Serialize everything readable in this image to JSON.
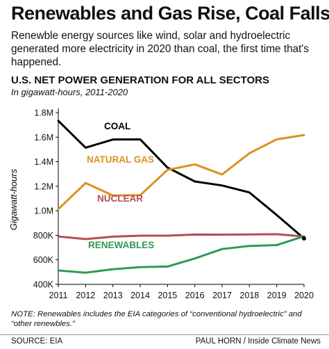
{
  "header": {
    "title": "Renewables and Gas Rise, Coal Falls",
    "subtitle": "Renewble energy sources like wind, solar and hydroelectric generated more electricity in 2020 than coal, the first time that's happened."
  },
  "chart_data": {
    "type": "line",
    "title": "U.S. NET POWER GENERATION FOR ALL SECTORS",
    "subtitle": "In gigawatt-hours, 2011-2020",
    "ylabel": "Gigawatt-hours",
    "xlabel": "",
    "x": [
      2011,
      2012,
      2013,
      2014,
      2015,
      2016,
      2017,
      2018,
      2019,
      2020
    ],
    "ylim": [
      400000,
      1800000
    ],
    "y_ticks": [
      400000,
      600000,
      800000,
      1000000,
      1200000,
      1400000,
      1600000,
      1800000
    ],
    "y_tick_labels": [
      "400K",
      "600K",
      "800K",
      "1.0M",
      "1.2M",
      "1.4M",
      "1.6M",
      "1.8M"
    ],
    "grid": false,
    "legend": "inline labels",
    "series": [
      {
        "name": "COAL",
        "color": "#000000",
        "values": [
          1733000,
          1514000,
          1581000,
          1582000,
          1352000,
          1239000,
          1206000,
          1149000,
          965000,
          774000
        ]
      },
      {
        "name": "NATURAL GAS",
        "color": "#d9921f",
        "values": [
          1013000,
          1226000,
          1124000,
          1127000,
          1333000,
          1378000,
          1296000,
          1469000,
          1582000,
          1617000
        ]
      },
      {
        "name": "NUCLEAR",
        "color": "#b84a54",
        "values": [
          790000,
          769000,
          789000,
          797000,
          797000,
          806000,
          805000,
          807000,
          809000,
          790000
        ]
      },
      {
        "name": "RENEWABLES",
        "color": "#2e9a52",
        "values": [
          513000,
          495000,
          523000,
          540000,
          545000,
          611000,
          688000,
          713000,
          720000,
          792000
        ]
      }
    ]
  },
  "note": "NOTE: Renewables includes the EIA categories of “conventional hydroelectric” and “other renewbles.”",
  "footer": {
    "source": "SOURCE: EIA",
    "credit": "PAUL HORN / Inside Climate News"
  }
}
